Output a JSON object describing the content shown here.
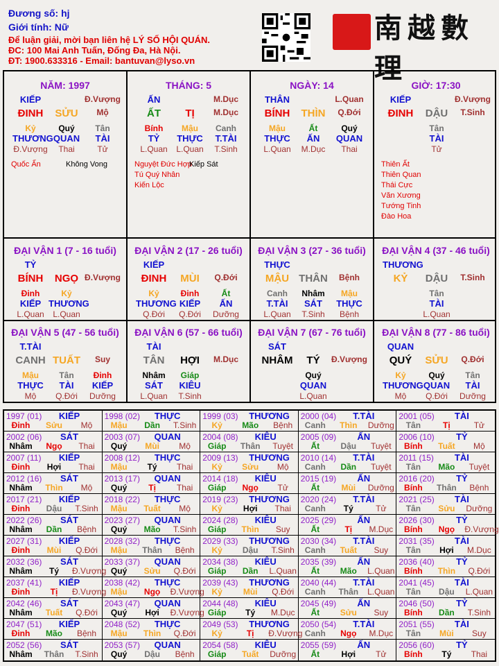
{
  "header": {
    "duong_so": "Đương số: hj",
    "gioi_tinh": "Giới tính:   Nữ",
    "contact_line1": "Để luận giải, mời bạn liên hệ LÝ SỐ HỘI QUÁN.",
    "contact_line2": "ĐC: 100 Mai Anh Tuấn, Đống Đa, Hà Nội.",
    "contact_line3": "ĐT: 1900.633316 - Email: bantuvan@lyso.vn",
    "logo_text": "南越數理"
  },
  "element_colors": {
    "Hỏa": "#e60000",
    "Thổ": "#f5a623",
    "Kim": "#707070",
    "Thủy": "#000000",
    "Mộc": "#168a16"
  },
  "element_of": {
    "BÍNH": "Hỏa",
    "ĐINH": "Hỏa",
    "TỊ": "Hỏa",
    "NGỌ": "Hỏa",
    "MẬU": "Thổ",
    "KỶ": "Thổ",
    "THÌN": "Thổ",
    "TUẤT": "Thổ",
    "SỬU": "Thổ",
    "MÙI": "Thổ",
    "CANH": "Kim",
    "TÂN": "Kim",
    "THÂN": "Kim",
    "DẬU": "Kim",
    "NHÂM": "Thủy",
    "QUÝ": "Thủy",
    "HỢI": "Thủy",
    "TÝ": "Thủy",
    "GIÁP": "Mộc",
    "ẤT": "Mộc",
    "DẦN": "Mộc",
    "MÃO": "Mộc"
  },
  "pillars": [
    {
      "title": "NĂM: 1997",
      "stem_god": "KIẾP",
      "stem_stage": "Đ.Vượng",
      "stem": "ĐINH",
      "branch": "SỬU",
      "branch_stage": "Mộ",
      "hidden": [
        {
          "stem": "Kỷ",
          "god": "THƯƠNG",
          "stage": "Đ.Vượng"
        },
        {
          "stem": "Quý",
          "god": "QUAN",
          "stage": "Thai"
        },
        {
          "stem": "Tân",
          "god": "TÀI",
          "stage": "Tử"
        }
      ],
      "stars_good": [
        "Quốc Ấn"
      ],
      "stars_bad": [
        "Không Vong"
      ]
    },
    {
      "title": "THÁNG: 5",
      "stem_god": "ẤN",
      "stem_stage": "M.Dục",
      "stem": "ẤT",
      "branch": "TỊ",
      "branch_stage": "M.Dục",
      "hidden": [
        {
          "stem": "Bính",
          "god": "TỶ",
          "stage": "L.Quan"
        },
        {
          "stem": "Mậu",
          "god": "THỰC",
          "stage": "L.Quan"
        },
        {
          "stem": "Canh",
          "god": "T.TÀI",
          "stage": "T.Sinh"
        }
      ],
      "stars_good": [
        "Nguyệt Đức Hợp",
        "Tú Quý Nhân",
        "Kiến Lộc"
      ],
      "stars_bad": [
        "Kiếp Sát"
      ]
    },
    {
      "title": "NGÀY: 14",
      "stem_god": "THÂN",
      "stem_stage": "L.Quan",
      "stem": "BÍNH",
      "branch": "THÌN",
      "branch_stage": "Q.Đới",
      "hidden": [
        {
          "stem": "Mậu",
          "god": "THỰC",
          "stage": "L.Quan"
        },
        {
          "stem": "Ất",
          "god": "ẤN",
          "stage": "M.Dục"
        },
        {
          "stem": "Quý",
          "god": "QUAN",
          "stage": "Thai"
        }
      ],
      "stars_good": [],
      "stars_bad": []
    },
    {
      "title": "GIỜ: 17:30",
      "stem_god": "KIẾP",
      "stem_stage": "Đ.Vượng",
      "stem": "ĐINH",
      "branch": "DẬU",
      "branch_stage": "T.Sinh",
      "hidden": [
        null,
        {
          "stem": "Tân",
          "god": "TÀI",
          "stage": "Tử"
        },
        null
      ],
      "stars_good": [
        "Thiên Ất",
        "Thiên Quan",
        "Thái Cực",
        "Văn Xương",
        "Tướng Tinh",
        "Đào Hoa"
      ],
      "stars_bad": []
    }
  ],
  "dai_van": [
    {
      "title": "ĐẠI VẬN 1 (7 - 16 tuổi)",
      "stem_god": "TỶ",
      "stem": "BÍNH",
      "branch": "NGỌ",
      "branch_stage": "Đ.Vượng",
      "hidden": [
        {
          "stem": "Đinh",
          "god": "KIẾP",
          "stage": "L.Quan"
        },
        {
          "stem": "Kỷ",
          "god": "THƯƠNG",
          "stage": "L.Quan"
        },
        null
      ]
    },
    {
      "title": "ĐẠI VẬN 2 (17 - 26 tuổi)",
      "stem_god": "KIẾP",
      "stem": "ĐINH",
      "branch": "MÙI",
      "branch_stage": "Q.Đới",
      "hidden": [
        {
          "stem": "Kỷ",
          "god": "THƯƠNG",
          "stage": "Q.Đới"
        },
        {
          "stem": "Đinh",
          "god": "KIẾP",
          "stage": "Q.Đới"
        },
        {
          "stem": "Ất",
          "god": "ẤN",
          "stage": "Dưỡng"
        }
      ]
    },
    {
      "title": "ĐẠI VẬN 3 (27 - 36 tuổi)",
      "stem_god": "THỰC",
      "stem": "MẬU",
      "branch": "THÂN",
      "branch_stage": "Bệnh",
      "hidden": [
        {
          "stem": "Canh",
          "god": "T.TÀI",
          "stage": "L.Quan"
        },
        {
          "stem": "Nhâm",
          "god": "SÁT",
          "stage": "T.Sinh"
        },
        {
          "stem": "Mậu",
          "god": "THỰC",
          "stage": "Bệnh"
        }
      ]
    },
    {
      "title": "ĐẠI VẬN 4 (37 - 46 tuổi)",
      "stem_god": "THƯƠNG",
      "stem": "KỶ",
      "branch": "DẬU",
      "branch_stage": "T.Sinh",
      "hidden": [
        null,
        {
          "stem": "Tân",
          "god": "TÀI",
          "stage": "L.Quan"
        },
        null
      ]
    },
    {
      "title": "ĐẠI VẬN 5 (47 - 56 tuổi)",
      "stem_god": "T.TÀI",
      "stem": "CANH",
      "branch": "TUẤT",
      "branch_stage": "Suy",
      "hidden": [
        {
          "stem": "Mậu",
          "god": "THỰC",
          "stage": "Mộ"
        },
        {
          "stem": "Tân",
          "god": "TÀI",
          "stage": "Q.Đới"
        },
        {
          "stem": "Đinh",
          "god": "KIẾP",
          "stage": "Dưỡng"
        }
      ]
    },
    {
      "title": "ĐẠI VẬN 6 (57 - 66 tuổi)",
      "stem_god": "TÀI",
      "stem": "TÂN",
      "branch": "HỢI",
      "branch_stage": "M.Dục",
      "hidden": [
        {
          "stem": "Nhâm",
          "god": "SÁT",
          "stage": "L.Quan"
        },
        {
          "stem": "Giáp",
          "god": "KIÊU",
          "stage": "T.Sinh"
        },
        null
      ]
    },
    {
      "title": "ĐẠI VẬN 7 (67 - 76 tuổi)",
      "stem_god": "SÁT",
      "stem": "NHÂM",
      "branch": "TÝ",
      "branch_stage": "Đ.Vượng",
      "hidden": [
        null,
        {
          "stem": "Quý",
          "god": "QUAN",
          "stage": "L.Quan"
        },
        null
      ]
    },
    {
      "title": "ĐẠI VẬN 8 (77 - 86 tuổi)",
      "stem_god": "QUAN",
      "stem": "QUÝ",
      "branch": "SỬU",
      "branch_stage": "Q.Đới",
      "hidden": [
        {
          "stem": "Kỷ",
          "god": "THƯƠNG",
          "stage": "Mộ"
        },
        {
          "stem": "Quý",
          "god": "QUAN",
          "stage": "Q.Đới"
        },
        {
          "stem": "Tân",
          "god": "TÀI",
          "stage": "Dưỡng"
        }
      ]
    }
  ],
  "years": [
    [
      "1997 (01)",
      "KIẾP",
      "Đinh",
      "Sửu",
      "Mộ"
    ],
    [
      "1998 (02)",
      "THỰC",
      "Mậu",
      "Dần",
      "T.Sinh"
    ],
    [
      "1999 (03)",
      "THƯƠNG",
      "Kỷ",
      "Mão",
      "Bệnh"
    ],
    [
      "2000 (04)",
      "T.TÀI",
      "Canh",
      "Thìn",
      "Dưỡng"
    ],
    [
      "2001 (05)",
      "TÀI",
      "Tân",
      "Tị",
      "Tử"
    ],
    [
      "2002 (06)",
      "SÁT",
      "Nhâm",
      "Ngọ",
      "Thai"
    ],
    [
      "2003 (07)",
      "QUAN",
      "Quý",
      "Mùi",
      "Mộ"
    ],
    [
      "2004 (08)",
      "KIÊU",
      "Giáp",
      "Thân",
      "Tuyệt"
    ],
    [
      "2005 (09)",
      "ẤN",
      "Ất",
      "Dậu",
      "Tuyệt"
    ],
    [
      "2006 (10)",
      "TỶ",
      "Bính",
      "Tuất",
      "Mộ"
    ],
    [
      "2007 (11)",
      "KIẾP",
      "Đinh",
      "Hợi",
      "Thai"
    ],
    [
      "2008 (12)",
      "THỰC",
      "Mậu",
      "Tý",
      "Thai"
    ],
    [
      "2009 (13)",
      "THƯƠNG",
      "Kỷ",
      "Sửu",
      "Mộ"
    ],
    [
      "2010 (14)",
      "T.TÀI",
      "Canh",
      "Dần",
      "Tuyệt"
    ],
    [
      "2011 (15)",
      "TÀI",
      "Tân",
      "Mão",
      "Tuyệt"
    ],
    [
      "2012 (16)",
      "SÁT",
      "Nhâm",
      "Thìn",
      "Mộ"
    ],
    [
      "2013 (17)",
      "QUAN",
      "Quý",
      "Tị",
      "Thai"
    ],
    [
      "2014 (18)",
      "KIÊU",
      "Giáp",
      "Ngọ",
      "Tử"
    ],
    [
      "2015 (19)",
      "ẤN",
      "Ất",
      "Mùi",
      "Dưỡng"
    ],
    [
      "2016 (20)",
      "TỶ",
      "Bính",
      "Thân",
      "Bệnh"
    ],
    [
      "2017 (21)",
      "KIẾP",
      "Đinh",
      "Dậu",
      "T.Sinh"
    ],
    [
      "2018 (22)",
      "THỰC",
      "Mậu",
      "Tuất",
      "Mộ"
    ],
    [
      "2019 (23)",
      "THƯƠNG",
      "Kỷ",
      "Hợi",
      "Thai"
    ],
    [
      "2020 (24)",
      "T.TÀI",
      "Canh",
      "Tý",
      "Tử"
    ],
    [
      "2021 (25)",
      "TÀI",
      "Tân",
      "Sửu",
      "Dưỡng"
    ],
    [
      "2022 (26)",
      "SÁT",
      "Nhâm",
      "Dần",
      "Bệnh"
    ],
    [
      "2023 (27)",
      "QUAN",
      "Quý",
      "Mão",
      "T.Sinh"
    ],
    [
      "2024 (28)",
      "KIÊU",
      "Giáp",
      "Thìn",
      "Suy"
    ],
    [
      "2025 (29)",
      "ẤN",
      "Ất",
      "Tị",
      "M.Dục"
    ],
    [
      "2026 (30)",
      "TỶ",
      "Bính",
      "Ngọ",
      "Đ.Vượng"
    ],
    [
      "2027 (31)",
      "KIẾP",
      "Đinh",
      "Mùi",
      "Q.Đới"
    ],
    [
      "2028 (32)",
      "THỰC",
      "Mậu",
      "Thân",
      "Bệnh"
    ],
    [
      "2029 (33)",
      "THƯƠNG",
      "Kỷ",
      "Dậu",
      "T.Sinh"
    ],
    [
      "2030 (34)",
      "T.TÀI",
      "Canh",
      "Tuất",
      "Suy"
    ],
    [
      "2031 (35)",
      "TÀI",
      "Tân",
      "Hợi",
      "M.Dục"
    ],
    [
      "2032 (36)",
      "SÁT",
      "Nhâm",
      "Tý",
      "Đ.Vượng"
    ],
    [
      "2033 (37)",
      "QUAN",
      "Quý",
      "Sửu",
      "Q.Đới"
    ],
    [
      "2034 (38)",
      "KIÊU",
      "Giáp",
      "Dần",
      "L.Quan"
    ],
    [
      "2035 (39)",
      "ẤN",
      "Ất",
      "Mão",
      "L.Quan"
    ],
    [
      "2036 (40)",
      "TỶ",
      "Bính",
      "Thìn",
      "Q.Đới"
    ],
    [
      "2037 (41)",
      "KIẾP",
      "Đinh",
      "Tị",
      "Đ.Vượng"
    ],
    [
      "2038 (42)",
      "THỰC",
      "Mậu",
      "Ngọ",
      "Đ.Vượng"
    ],
    [
      "2039 (43)",
      "THƯƠNG",
      "Kỷ",
      "Mùi",
      "Q.Đới"
    ],
    [
      "2040 (44)",
      "T.TÀI",
      "Canh",
      "Thân",
      "L.Quan"
    ],
    [
      "2041 (45)",
      "TÀI",
      "Tân",
      "Dậu",
      "L.Quan"
    ],
    [
      "2042 (46)",
      "SÁT",
      "Nhâm",
      "Tuất",
      "Q.Đới"
    ],
    [
      "2043 (47)",
      "QUAN",
      "Quý",
      "Hợi",
      "Đ.Vượng"
    ],
    [
      "2044 (48)",
      "KIÊU",
      "Giáp",
      "Tý",
      "M.Dục"
    ],
    [
      "2045 (49)",
      "ẤN",
      "Ất",
      "Sửu",
      "Suy"
    ],
    [
      "2046 (50)",
      "TỶ",
      "Bính",
      "Dần",
      "T.Sinh"
    ],
    [
      "2047 (51)",
      "KIẾP",
      "Đinh",
      "Mão",
      "Bệnh"
    ],
    [
      "2048 (52)",
      "THỰC",
      "Mậu",
      "Thìn",
      "Q.Đới"
    ],
    [
      "2049 (53)",
      "THƯƠNG",
      "Kỷ",
      "Tị",
      "Đ.Vượng"
    ],
    [
      "2050 (54)",
      "T.TÀI",
      "Canh",
      "Ngọ",
      "M.Dục"
    ],
    [
      "2051 (55)",
      "TÀI",
      "Tân",
      "Mùi",
      "Suy"
    ],
    [
      "2052 (56)",
      "SÁT",
      "Nhâm",
      "Thân",
      "T.Sinh"
    ],
    [
      "2053 (57)",
      "QUAN",
      "Quý",
      "Dậu",
      "Bệnh"
    ],
    [
      "2054 (58)",
      "KIÊU",
      "Giáp",
      "Tuất",
      "Dưỡng"
    ],
    [
      "2055 (59)",
      "ẤN",
      "Ất",
      "Hợi",
      "Tử"
    ],
    [
      "2056 (60)",
      "TỶ",
      "Bính",
      "Tý",
      "Thai"
    ]
  ]
}
